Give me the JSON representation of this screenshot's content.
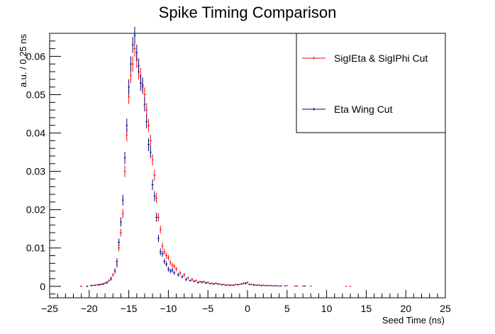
{
  "chart_data": {
    "type": "scatter",
    "title": "Spike Timing Comparison",
    "xlabel": "Seed Time (ns)",
    "ylabel": "a.u. / 0.25 ns",
    "xlim": [
      -25,
      25
    ],
    "ylim": [
      -0.003,
      0.066
    ],
    "xticks": [
      -25,
      -20,
      -15,
      -10,
      -5,
      0,
      5,
      10,
      15,
      20,
      25
    ],
    "xtick_labels": [
      "−25",
      "−20",
      "−15",
      "−10",
      "−5",
      "0",
      "5",
      "10",
      "15",
      "20",
      "25"
    ],
    "yticks": [
      0,
      0.01,
      0.02,
      0.03,
      0.04,
      0.05,
      0.06
    ],
    "ytick_labels": [
      "0",
      "0.01",
      "0.02",
      "0.03",
      "0.04",
      "0.05",
      "0.06"
    ],
    "grid": false,
    "legend_position": "top-right",
    "series": [
      {
        "name": "SigIEta & SigIPhi Cut",
        "color": "#ff0000",
        "x": [
          -21.0,
          -19.5,
          -19.0,
          -18.5,
          -18.0,
          -17.5,
          -17.0,
          -16.5,
          -16.25,
          -16.0,
          -15.75,
          -15.5,
          -15.25,
          -15.0,
          -14.75,
          -14.5,
          -14.25,
          -14.0,
          -13.75,
          -13.5,
          -13.25,
          -13.0,
          -12.75,
          -12.5,
          -12.25,
          -12.0,
          -11.75,
          -11.5,
          -11.25,
          -11.0,
          -10.75,
          -10.5,
          -10.25,
          -10.0,
          -9.75,
          -9.5,
          -9.25,
          -9.0,
          -8.5,
          -8.0,
          -7.5,
          -7.0,
          -6.5,
          -6.0,
          -5.5,
          -5.0,
          -4.5,
          -4.0,
          -3.5,
          -3.0,
          -2.5,
          -2.0,
          -1.5,
          -1.0,
          -0.5,
          0.0,
          0.5,
          1.0,
          1.5,
          2.0,
          2.5,
          3.0,
          3.5,
          4.0,
          5.0,
          6.0,
          7.0,
          8.0,
          12.5,
          13.0
        ],
        "y": [
          0.0,
          0.0002,
          0.0004,
          0.0005,
          0.0008,
          0.0015,
          0.003,
          0.0055,
          0.01,
          0.014,
          0.019,
          0.03,
          0.0395,
          0.0495,
          0.055,
          0.058,
          0.062,
          0.059,
          0.056,
          0.055,
          0.052,
          0.05,
          0.046,
          0.042,
          0.038,
          0.033,
          0.029,
          0.023,
          0.018,
          0.0148,
          0.0105,
          0.009,
          0.008,
          0.0075,
          0.0062,
          0.0055,
          0.0052,
          0.0045,
          0.0035,
          0.003,
          0.0022,
          0.0018,
          0.0015,
          0.0012,
          0.0012,
          0.001,
          0.0008,
          0.0008,
          0.0006,
          0.0005,
          0.0004,
          0.0003,
          0.0005,
          0.0005,
          0.0008,
          0.001,
          0.0005,
          0.0003,
          0.0003,
          0.0003,
          0.0002,
          0.0002,
          0.0002,
          0.0001,
          0.0002,
          0.0001,
          0.0001,
          0.0001,
          0.0,
          0.0
        ],
        "yerr": [
          0.0002,
          0.0002,
          0.0002,
          0.0003,
          0.0003,
          0.0004,
          0.0005,
          0.0007,
          0.0009,
          0.001,
          0.0012,
          0.0015,
          0.0017,
          0.0019,
          0.002,
          0.002,
          0.0021,
          0.002,
          0.002,
          0.002,
          0.0019,
          0.0019,
          0.0018,
          0.0017,
          0.0016,
          0.0015,
          0.0014,
          0.0013,
          0.0011,
          0.001,
          0.0009,
          0.0008,
          0.0008,
          0.0007,
          0.0007,
          0.0006,
          0.0006,
          0.0006,
          0.0005,
          0.0005,
          0.0004,
          0.0004,
          0.0003,
          0.0003,
          0.0003,
          0.0003,
          0.0003,
          0.0003,
          0.0002,
          0.0002,
          0.0002,
          0.0002,
          0.0002,
          0.0002,
          0.0003,
          0.0003,
          0.0002,
          0.0002,
          0.0002,
          0.0002,
          0.0002,
          0.0002,
          0.0002,
          0.0001,
          0.0001,
          0.0001,
          0.0001,
          0.0001,
          0.0001,
          0.0001
        ]
      },
      {
        "name": "Eta Wing Cut",
        "color": "#00007f",
        "x": [
          -20.25,
          -19.75,
          -19.25,
          -18.75,
          -18.25,
          -17.75,
          -17.25,
          -16.75,
          -16.5,
          -16.25,
          -16.0,
          -15.75,
          -15.5,
          -15.25,
          -15.0,
          -14.75,
          -14.5,
          -14.25,
          -14.0,
          -13.75,
          -13.5,
          -13.25,
          -13.0,
          -12.75,
          -12.5,
          -12.25,
          -12.0,
          -11.75,
          -11.5,
          -11.25,
          -11.0,
          -10.75,
          -10.5,
          -10.25,
          -10.0,
          -9.75,
          -9.5,
          -9.25,
          -8.75,
          -8.25,
          -7.75,
          -7.25,
          -6.75,
          -6.25,
          -5.75,
          -5.25,
          -4.75,
          -4.25,
          -3.75,
          -3.25,
          -2.75,
          -2.25,
          -1.75,
          -1.25,
          -0.75,
          -0.25,
          0.25,
          0.75,
          1.25,
          1.75,
          2.25,
          2.75,
          3.25,
          3.75,
          4.25,
          4.75,
          6.25,
          7.25
        ],
        "y": [
          0.0,
          0.0002,
          0.0003,
          0.0004,
          0.0006,
          0.001,
          0.002,
          0.004,
          0.0065,
          0.0115,
          0.0168,
          0.0225,
          0.0335,
          0.042,
          0.052,
          0.058,
          0.063,
          0.0655,
          0.061,
          0.0575,
          0.053,
          0.0525,
          0.0475,
          0.043,
          0.037,
          0.035,
          0.0265,
          0.0235,
          0.018,
          0.0125,
          0.009,
          0.0085,
          0.0065,
          0.0058,
          0.0045,
          0.004,
          0.0042,
          0.0035,
          0.003,
          0.0025,
          0.0018,
          0.0015,
          0.0013,
          0.001,
          0.0011,
          0.0009,
          0.0007,
          0.0006,
          0.0006,
          0.0004,
          0.0003,
          0.0003,
          0.0003,
          0.0004,
          0.0006,
          0.0008,
          0.0005,
          0.0004,
          0.0003,
          0.0002,
          0.0002,
          0.0002,
          0.0001,
          0.0001,
          0.0001,
          0.0001,
          0.0001,
          0.0001
        ],
        "yerr": [
          0.0002,
          0.0002,
          0.0002,
          0.0003,
          0.0003,
          0.0004,
          0.0005,
          0.0007,
          0.0008,
          0.001,
          0.0012,
          0.0014,
          0.0016,
          0.0018,
          0.002,
          0.002,
          0.0021,
          0.0022,
          0.0021,
          0.002,
          0.002,
          0.002,
          0.0019,
          0.0018,
          0.0017,
          0.0016,
          0.0014,
          0.0013,
          0.0012,
          0.001,
          0.0009,
          0.0008,
          0.0007,
          0.0007,
          0.0006,
          0.0006,
          0.0006,
          0.0005,
          0.0005,
          0.0004,
          0.0004,
          0.0003,
          0.0003,
          0.0003,
          0.0003,
          0.0003,
          0.0002,
          0.0002,
          0.0002,
          0.0002,
          0.0002,
          0.0002,
          0.0002,
          0.0002,
          0.0002,
          0.0003,
          0.0002,
          0.0002,
          0.0002,
          0.0002,
          0.0001,
          0.0001,
          0.0001,
          0.0001,
          0.0001,
          0.0001,
          0.0001,
          0.0001
        ]
      }
    ]
  }
}
